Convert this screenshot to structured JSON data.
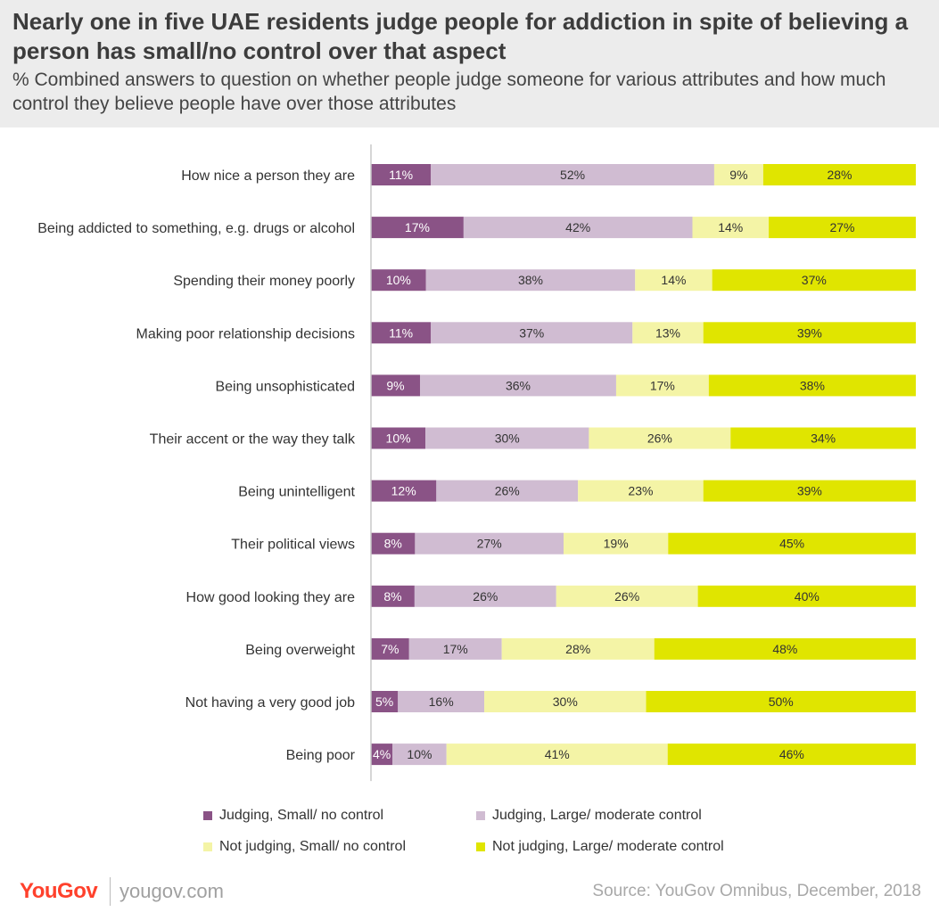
{
  "title": "Nearly one in five UAE residents judge people for addiction in spite of believing a person has small/no control over that aspect",
  "subtitle": "% Combined answers to question on whether people judge someone for various attributes and how much control they believe people have over those attributes",
  "chart_data": {
    "type": "bar",
    "orientation": "horizontal",
    "stacked": true,
    "categories": [
      "How nice a person they are",
      "Being addicted to something, e.g. drugs or alcohol",
      "Spending their money poorly",
      "Making poor relationship decisions",
      "Being unsophisticated",
      "Their accent or the way they talk",
      "Being unintelligent",
      "Their political views",
      "How good looking they are",
      "Being overweight",
      "Not having a very good job",
      "Being poor"
    ],
    "series": [
      {
        "name": "Judging, Small/ no control",
        "color": "#8a5386",
        "values": [
          11,
          17,
          10,
          11,
          9,
          10,
          12,
          8,
          8,
          7,
          5,
          4
        ]
      },
      {
        "name": "Judging, Large/ moderate control",
        "color": "#d0bcd2",
        "values": [
          52,
          42,
          38,
          37,
          36,
          30,
          26,
          27,
          26,
          17,
          16,
          10
        ]
      },
      {
        "name": "Not judging, Small/ no control",
        "color": "#f4f4a6",
        "values": [
          9,
          14,
          14,
          13,
          17,
          26,
          23,
          19,
          26,
          28,
          30,
          41
        ]
      },
      {
        "name": "Not judging, Large/ moderate control",
        "color": "#e0e500",
        "values": [
          28,
          27,
          37,
          39,
          38,
          34,
          39,
          45,
          40,
          48,
          50,
          46
        ]
      }
    ],
    "value_suffix": "%",
    "legend_position": "bottom"
  },
  "footer": {
    "logo": "YouGov",
    "site": "yougov.com",
    "source": "Source: YouGov Omnibus, December, 2018"
  }
}
